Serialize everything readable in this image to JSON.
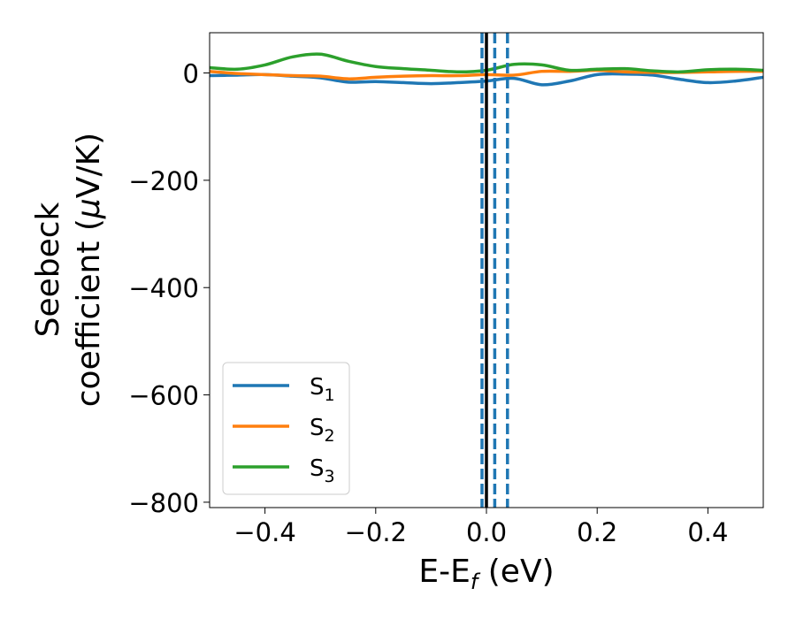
{
  "chart_data": {
    "type": "line",
    "title": "",
    "xlabel": {
      "main": "E-E",
      "sub": "f",
      "unit": " (eV)"
    },
    "ylabel": {
      "line1": "Seebeck",
      "line2_main": "coefficient  (",
      "line2_mu": "μ",
      "line2_rest": "V/K)"
    },
    "xlim": [
      -0.5,
      0.5
    ],
    "ylim": [
      -810,
      75
    ],
    "xticks": [
      -0.4,
      -0.2,
      0.0,
      0.2,
      0.4
    ],
    "xtick_labels": [
      "−0.4",
      "−0.2",
      "0.0",
      "0.2",
      "0.4"
    ],
    "yticks": [
      0,
      -200,
      -400,
      -600,
      -800
    ],
    "ytick_labels": [
      "0",
      "−200",
      "−400",
      "−600",
      "−800"
    ],
    "grid": false,
    "legend_position": "lower-left",
    "vlines": [
      {
        "x": 0.0,
        "style": "solid",
        "color": "#000000"
      },
      {
        "x": -0.008,
        "style": "dashed",
        "color": "#1f77b4"
      },
      {
        "x": 0.015,
        "style": "dashed",
        "color": "#1f77b4"
      },
      {
        "x": 0.038,
        "style": "dashed",
        "color": "#1f77b4"
      }
    ],
    "series": [
      {
        "name": "S",
        "sub": "1",
        "color": "#1f77b4",
        "x": [
          -0.5,
          -0.45,
          -0.4,
          -0.35,
          -0.3,
          -0.25,
          -0.2,
          -0.15,
          -0.1,
          -0.05,
          0.0,
          0.05,
          0.1,
          0.15,
          0.2,
          0.25,
          0.3,
          0.35,
          0.4,
          0.45,
          0.5
        ],
        "y": [
          -5,
          -4,
          -3,
          -6,
          -9,
          -17,
          -16,
          -18,
          -20,
          -18,
          -15,
          -10,
          -22,
          -15,
          -3,
          -2,
          -4,
          -12,
          -18,
          -15,
          -8
        ]
      },
      {
        "name": "S",
        "sub": "2",
        "color": "#ff7f0e",
        "x": [
          -0.5,
          -0.45,
          -0.4,
          -0.35,
          -0.3,
          -0.25,
          -0.2,
          -0.15,
          -0.1,
          -0.05,
          0.0,
          0.05,
          0.1,
          0.15,
          0.2,
          0.25,
          0.3,
          0.35,
          0.4,
          0.45,
          0.5
        ],
        "y": [
          3,
          -1,
          -3,
          -5,
          -6,
          -11,
          -8,
          -6,
          -5,
          -5,
          -3,
          -4,
          3,
          3,
          5,
          2,
          1,
          1,
          2,
          3,
          3
        ]
      },
      {
        "name": "S",
        "sub": "3",
        "color": "#2ca02c",
        "x": [
          -0.5,
          -0.45,
          -0.4,
          -0.35,
          -0.3,
          -0.25,
          -0.2,
          -0.15,
          -0.1,
          -0.05,
          0.0,
          0.05,
          0.1,
          0.15,
          0.2,
          0.25,
          0.3,
          0.35,
          0.4,
          0.45,
          0.5
        ],
        "y": [
          10,
          7,
          15,
          30,
          35,
          22,
          12,
          8,
          5,
          2,
          5,
          16,
          15,
          5,
          7,
          8,
          4,
          2,
          6,
          7,
          5
        ]
      }
    ]
  }
}
